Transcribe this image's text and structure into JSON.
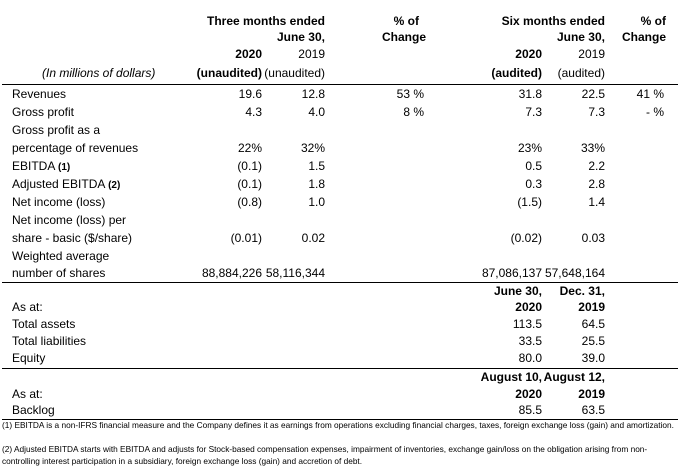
{
  "header": {
    "three_months": "Three months ended",
    "three_months_sub": "June 30,",
    "pct_change_1": "% of",
    "change_1": "Change",
    "six_months": "Six months ended",
    "six_months_sub": "June 30,",
    "pct_change_2": "% of",
    "change_2": "Change",
    "units": "(In millions of dollars)",
    "col1_year": "2020",
    "col1_status": "(unaudited)",
    "col2_year": "2019",
    "col2_status": "(unaudited)",
    "col3_year": "2020",
    "col3_status": "(audited)",
    "col4_year": "2019",
    "col4_status": "(audited)"
  },
  "rows": {
    "revenues": {
      "label": "Revenues",
      "c1": "19.6",
      "c2": "12.8",
      "p1": "53 %",
      "c3": "31.8",
      "c4": "22.5",
      "p2": "41 %"
    },
    "gross_profit": {
      "label": "Gross profit",
      "c1": "4.3",
      "c2": "4.0",
      "p1": "8 %",
      "c3": "7.3",
      "c4": "7.3",
      "p2": "- %"
    },
    "gp_pct": {
      "label1": "Gross profit as a",
      "label2": "percentage of revenues",
      "c1": "22%",
      "c2": "32%",
      "c3": "23%",
      "c4": "33%"
    },
    "ebitda": {
      "label": "EBITDA",
      "note": "(1)",
      "c1": "(0.1)",
      "c2": "1.5",
      "c3": "0.5",
      "c4": "2.2"
    },
    "adj_ebitda": {
      "label": "Adjusted EBITDA",
      "note": "(2)",
      "c1": "(0.1)",
      "c2": "1.8",
      "c3": "0.3",
      "c4": "2.8"
    },
    "net_income": {
      "label": "Net income (loss)",
      "c1": "(0.8)",
      "c2": "1.0",
      "c3": "(1.5)",
      "c4": "1.4"
    },
    "eps": {
      "label1": "Net income (loss) per",
      "label2": "share - basic ($/share)",
      "c1": "(0.01)",
      "c2": "0.02",
      "c3": "(0.02)",
      "c4": "0.03"
    },
    "shares": {
      "label1": "Weighted average",
      "label2": "number of shares",
      "c1": "88,884,226",
      "c2": "58,116,344",
      "c3": "87,086,137",
      "c4": "57,648,164"
    }
  },
  "balance": {
    "date1": "June 30,",
    "year1": "2020",
    "date2": "Dec. 31,",
    "year2": "2019",
    "as_at": "As at:",
    "total_assets": {
      "label": "Total assets",
      "v1": "113.5",
      "v2": "64.5"
    },
    "total_liabilities": {
      "label": "Total liabilities",
      "v1": "33.5",
      "v2": "25.5"
    },
    "equity": {
      "label": "Equity",
      "v1": "80.0",
      "v2": "39.0"
    }
  },
  "backlog": {
    "date1": "August 10,",
    "year1": "2020",
    "date2": "August 12,",
    "year2": "2019",
    "as_at": "As at:",
    "label": "Backlog",
    "v1": "85.5",
    "v2": "63.5"
  },
  "footnotes": {
    "n1": "(1) EBITDA is a non-IFRS financial measure and the Company defines it as earnings from operations excluding financial charges, taxes, foreign exchange loss (gain) and amortization.",
    "n2": "(2) Adjusted EBITDA starts with EBITDA and adjusts for Stock-based compensation expenses, impairment of inventories, exchange gain/loss on the obligation arising from non-controlling interest participation in a subsidiary, foreign exchange loss (gain) and accretion of debt."
  }
}
